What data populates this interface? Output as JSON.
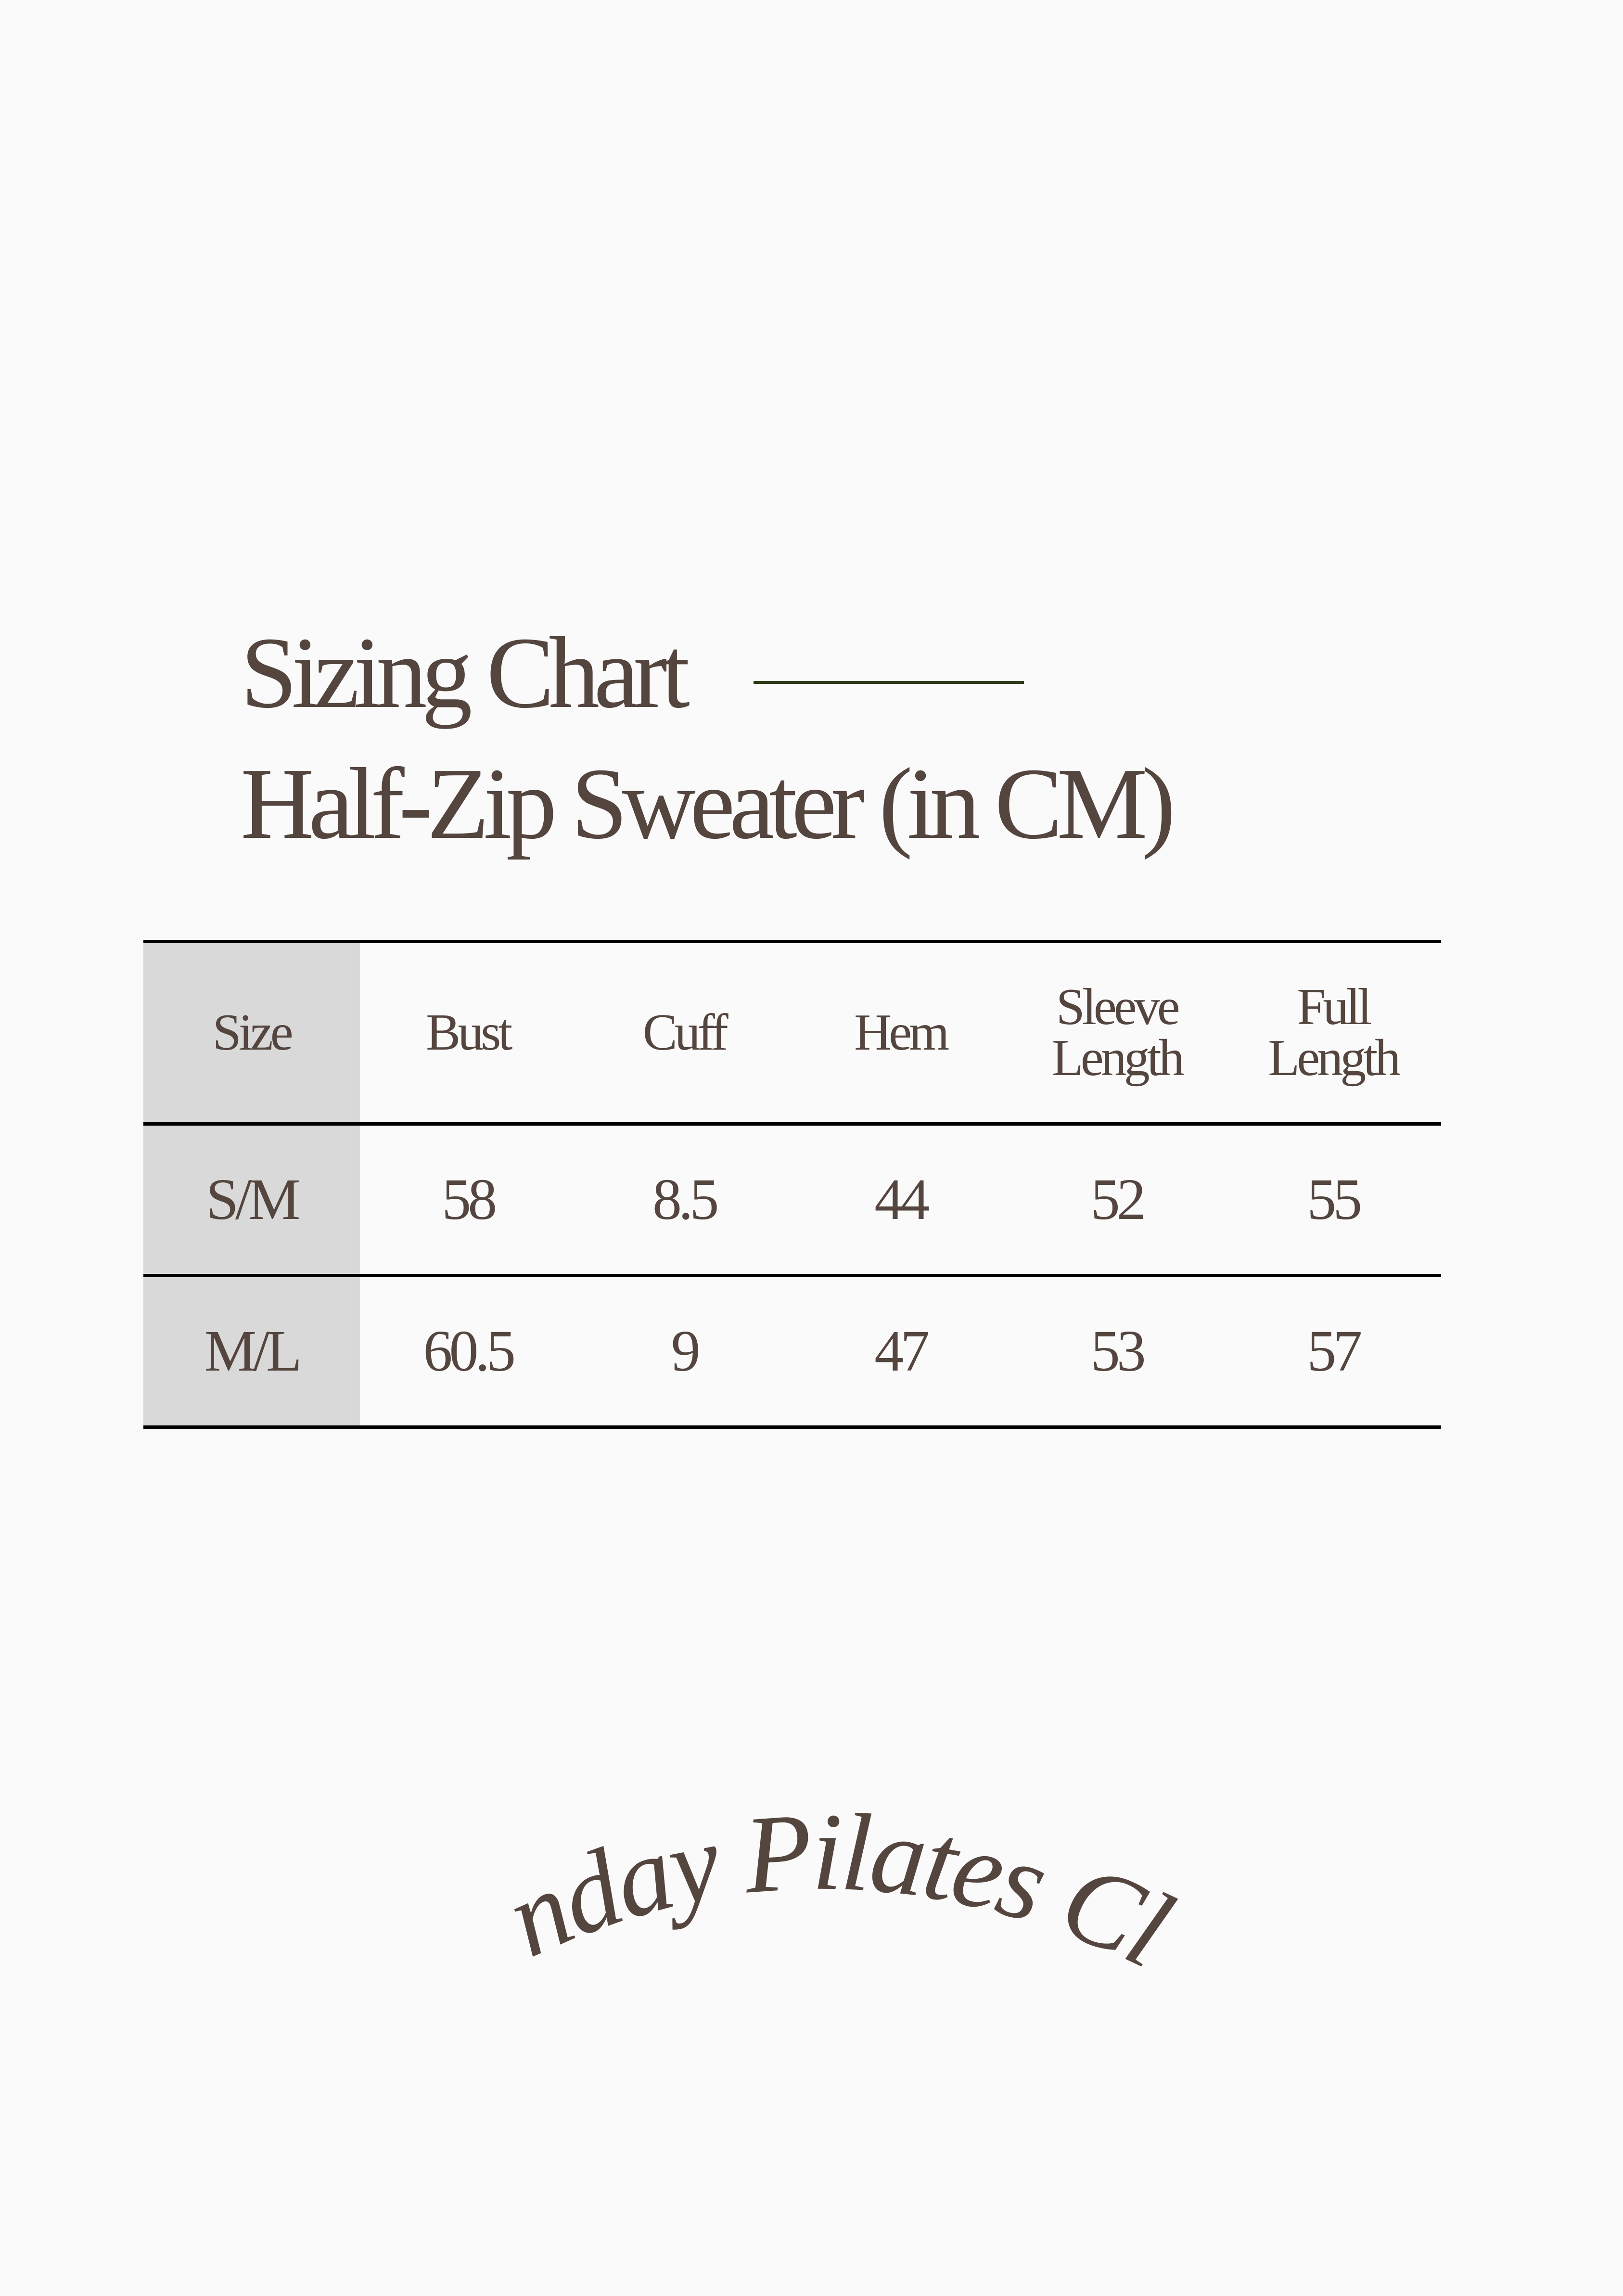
{
  "title": {
    "line1": "Sizing Chart",
    "line2": "Half-Zip Sweater (in CM)",
    "accent_rule_color": "#2e3b14"
  },
  "table": {
    "headers": [
      "Size",
      "Bust",
      "Cuff",
      "Hem",
      "Sleeve Length",
      "Full Length"
    ],
    "rows": [
      [
        "S/M",
        "58",
        "8.5",
        "44",
        "52",
        "55"
      ],
      [
        "M/L",
        "60.5",
        "9",
        "47",
        "53",
        "57"
      ]
    ]
  },
  "brand": {
    "logo_text": "Sunday Pilates Club"
  },
  "colors": {
    "text": "#54453f",
    "size_column": "#d9d9d9",
    "background": "#fafafa"
  }
}
